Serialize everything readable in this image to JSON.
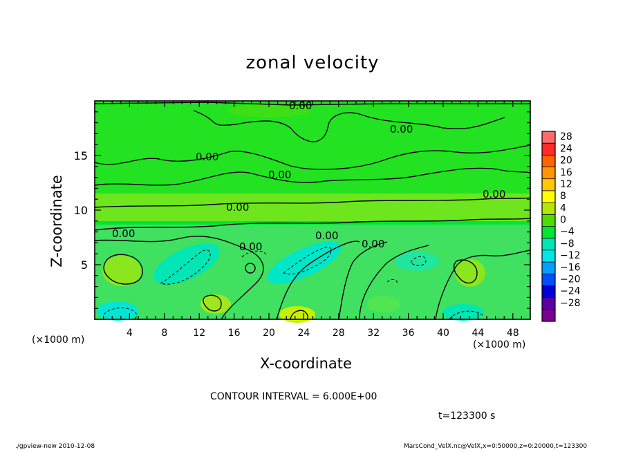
{
  "chart_data": {
    "type": "heatmap",
    "title": "zonal velocity",
    "xlabel": "X-coordinate",
    "ylabel": "Z-coordinate",
    "x_unit_label": "(×1000 m)",
    "xlim": [
      0,
      50
    ],
    "ylim": [
      0,
      20
    ],
    "x_ticks": [
      4,
      8,
      12,
      16,
      20,
      24,
      28,
      32,
      36,
      40,
      44,
      48
    ],
    "y_ticks": [
      5,
      10,
      15
    ],
    "colorbar": {
      "labels": [
        "28",
        "24",
        "20",
        "16",
        "12",
        "8",
        "4",
        "0",
        "−4",
        "−8",
        "−12",
        "−16",
        "−20",
        "−24",
        "−28"
      ],
      "colors": [
        "#ff6a6a",
        "#ff2a2a",
        "#ff6400",
        "#ff9600",
        "#ffc800",
        "#ffff00",
        "#b4e600",
        "#50dc00",
        "#00e632",
        "#00e6b4",
        "#00e6e6",
        "#00a0ff",
        "#0050ff",
        "#0000d2",
        "#5a00a0",
        "#7a0090"
      ]
    },
    "contour_labels": [
      "0.00",
      "0.00",
      "0.00",
      "0.00",
      "0.00",
      "0.00",
      "0.00",
      "0.00",
      "0.00",
      "0.00"
    ],
    "contour_interval": "CONTOUR INTERVAL = 6.000E+00",
    "time": "t=123300 s"
  },
  "footer": {
    "left": "./gpview-new  2010-12-08",
    "right": "MarsCond_VelX.nc@VelX,x=0:50000,z=0:20000,t=123300"
  }
}
